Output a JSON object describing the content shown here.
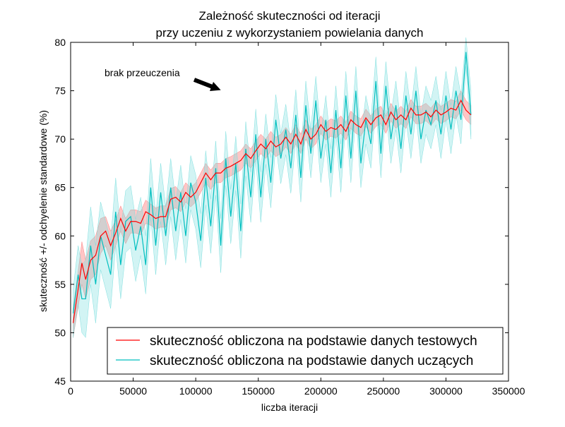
{
  "chart_data": {
    "type": "line",
    "title": [
      "Zależność skuteczności od iteracji",
      "przy uczeniu z wykorzystaniem powielania danych"
    ],
    "xlabel": "liczba iteracji",
    "ylabel": "skuteczność +/- odchyelenie standardowe (%)",
    "xlim": [
      0,
      350000
    ],
    "ylim": [
      45,
      80
    ],
    "xticks": [
      "0",
      "50000",
      "100000",
      "150000",
      "200000",
      "250000",
      "300000",
      "350000"
    ],
    "yticks": [
      "45",
      "50",
      "55",
      "60",
      "65",
      "70",
      "75",
      "80"
    ],
    "grid": false,
    "legend_position": "lower-right",
    "annotation": {
      "text": "brak przeuczenia",
      "xy": [
        120000,
        75.0
      ]
    },
    "series": [
      {
        "name": "skuteczność obliczona na podstawie danych testowych",
        "color": "#ff0000",
        "band_color": "#ff8080",
        "x": [
          2000,
          6000,
          9000,
          12000,
          16000,
          20000,
          24000,
          28000,
          32000,
          36000,
          40000,
          44000,
          48000,
          52000,
          56000,
          60000,
          64000,
          68000,
          72000,
          76000,
          80000,
          84000,
          88000,
          92000,
          96000,
          100000,
          104000,
          108000,
          112000,
          116000,
          120000,
          124000,
          128000,
          132000,
          136000,
          140000,
          144000,
          148000,
          152000,
          156000,
          160000,
          164000,
          168000,
          172000,
          176000,
          180000,
          184000,
          188000,
          192000,
          196000,
          200000,
          204000,
          208000,
          212000,
          216000,
          220000,
          224000,
          228000,
          232000,
          236000,
          240000,
          244000,
          248000,
          252000,
          256000,
          260000,
          264000,
          268000,
          272000,
          276000,
          280000,
          284000,
          288000,
          292000,
          296000,
          300000,
          304000,
          308000,
          312000,
          316000,
          320000
        ],
        "values": [
          51.0,
          54.5,
          57.2,
          55.5,
          57.5,
          58.0,
          60.0,
          60.5,
          59.0,
          60.3,
          61.8,
          60.5,
          61.5,
          61.5,
          61.3,
          62.5,
          62.2,
          61.8,
          62.0,
          62.0,
          63.8,
          64.0,
          63.5,
          64.5,
          64.0,
          64.5,
          65.5,
          66.5,
          65.8,
          66.5,
          66.5,
          67.0,
          67.2,
          67.5,
          67.8,
          68.5,
          68.0,
          68.8,
          69.5,
          69.0,
          69.8,
          69.2,
          69.5,
          70.2,
          69.5,
          70.5,
          69.5,
          71.0,
          70.0,
          70.5,
          71.5,
          70.8,
          71.2,
          71.0,
          71.5,
          70.8,
          72.0,
          71.5,
          71.2,
          72.2,
          71.5,
          72.2,
          72.5,
          71.5,
          72.8,
          72.0,
          72.5,
          72.0,
          73.2,
          72.5,
          72.5,
          72.8,
          72.3,
          73.0,
          72.5,
          72.8,
          73.2,
          73.0,
          74.0,
          73.0,
          72.5
        ],
        "std": [
          1.5,
          1.8,
          2.2,
          2.0,
          2.0,
          2.0,
          1.8,
          1.5,
          1.5,
          1.3,
          1.3,
          1.3,
          1.2,
          1.2,
          1.2,
          1.2,
          1.1,
          1.1,
          1.1,
          1.1,
          1.1,
          1.1,
          1.0,
          1.0,
          1.0,
          1.0,
          1.0,
          1.0,
          1.0,
          1.0,
          1.0,
          1.0,
          1.0,
          1.0,
          1.0,
          1.0,
          1.0,
          1.0,
          1.0,
          1.0,
          1.0,
          1.0,
          1.0,
          1.0,
          1.0,
          1.0,
          1.0,
          1.0,
          1.0,
          1.0,
          0.9,
          0.9,
          0.9,
          0.9,
          0.9,
          0.9,
          0.9,
          0.9,
          0.9,
          0.9,
          0.9,
          0.9,
          0.9,
          0.9,
          0.9,
          0.9,
          0.9,
          0.9,
          0.9,
          0.9,
          0.9,
          0.9,
          0.9,
          0.9,
          0.9,
          0.9,
          0.9,
          0.9,
          1.0,
          1.0,
          1.0
        ]
      },
      {
        "name": "skuteczność obliczona na podstawie danych uczących",
        "color": "#00bfbf",
        "band_color": "#7fdfdf",
        "x": [
          2000,
          6000,
          9000,
          12000,
          16000,
          20000,
          24000,
          28000,
          32000,
          36000,
          40000,
          44000,
          48000,
          52000,
          56000,
          60000,
          64000,
          68000,
          72000,
          76000,
          80000,
          84000,
          88000,
          92000,
          96000,
          100000,
          104000,
          108000,
          112000,
          116000,
          120000,
          124000,
          128000,
          132000,
          136000,
          140000,
          144000,
          148000,
          152000,
          156000,
          160000,
          164000,
          168000,
          172000,
          176000,
          180000,
          184000,
          188000,
          192000,
          196000,
          200000,
          204000,
          208000,
          212000,
          216000,
          220000,
          224000,
          228000,
          232000,
          236000,
          240000,
          244000,
          248000,
          252000,
          256000,
          260000,
          264000,
          268000,
          272000,
          276000,
          280000,
          284000,
          288000,
          292000,
          296000,
          300000,
          304000,
          308000,
          312000,
          316000,
          320000
        ],
        "values": [
          52.0,
          56.0,
          53.5,
          53.5,
          59.0,
          55.0,
          60.0,
          58.0,
          56.0,
          62.5,
          57.0,
          61.5,
          62.0,
          58.5,
          61.0,
          57.0,
          65.0,
          59.0,
          64.5,
          60.0,
          65.0,
          60.5,
          64.5,
          60.0,
          65.5,
          63.5,
          59.5,
          66.0,
          61.0,
          67.0,
          59.0,
          68.0,
          62.0,
          67.5,
          60.5,
          69.0,
          64.0,
          70.5,
          64.0,
          70.0,
          65.5,
          72.0,
          68.0,
          71.0,
          67.0,
          72.5,
          66.0,
          73.5,
          68.5,
          74.0,
          68.0,
          72.0,
          66.5,
          73.0,
          67.0,
          74.5,
          68.0,
          75.0,
          67.5,
          72.0,
          69.5,
          76.0,
          68.5,
          75.5,
          70.0,
          73.5,
          69.0,
          74.5,
          70.5,
          75.0,
          70.0,
          73.0,
          71.5,
          74.0,
          70.5,
          74.5,
          71.0,
          75.0,
          72.0,
          79.0,
          72.5
        ],
        "std": [
          2.5,
          3.0,
          3.5,
          4.0,
          4.0,
          4.0,
          3.5,
          3.5,
          3.5,
          3.5,
          3.5,
          3.2,
          3.2,
          3.2,
          3.0,
          3.0,
          3.0,
          3.0,
          3.0,
          3.0,
          3.0,
          3.0,
          2.8,
          2.8,
          2.8,
          2.8,
          2.8,
          2.8,
          2.8,
          2.8,
          2.8,
          2.8,
          2.8,
          2.8,
          2.8,
          2.8,
          2.6,
          2.6,
          2.6,
          2.6,
          2.6,
          2.6,
          2.6,
          2.6,
          2.6,
          2.6,
          2.5,
          2.5,
          2.5,
          2.5,
          2.5,
          2.5,
          2.5,
          2.5,
          2.5,
          2.5,
          2.5,
          2.5,
          2.5,
          2.5,
          2.5,
          2.5,
          2.5,
          2.5,
          2.5,
          2.5,
          2.5,
          2.5,
          2.5,
          2.5,
          2.5,
          2.5,
          2.5,
          2.5,
          2.5,
          2.5,
          2.5,
          2.5,
          2.5,
          1.5,
          2.5
        ]
      }
    ]
  }
}
